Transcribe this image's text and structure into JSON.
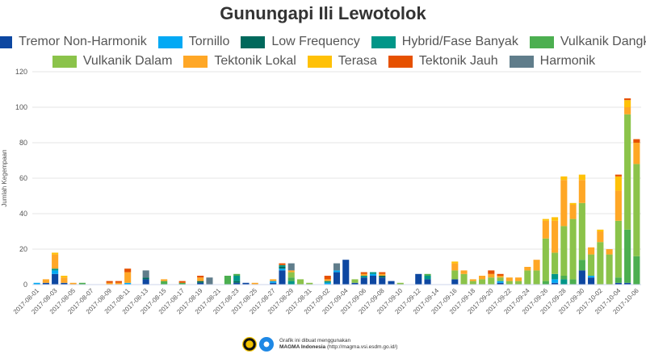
{
  "chart_data": {
    "type": "bar",
    "stacked": true,
    "title": "Gunungapi Ili Lewotolok",
    "ylabel": "Jumlah Kegempaan",
    "xlabel": "",
    "ylim": [
      0,
      120
    ],
    "yticks": [
      0,
      20,
      40,
      60,
      80,
      100,
      120
    ],
    "grid": true,
    "legend_position": "top",
    "categories": [
      "2017-08-01",
      "2017-08-02",
      "2017-08-03",
      "2017-08-04",
      "2017-08-05",
      "2017-08-06",
      "2017-08-07",
      "2017-08-08",
      "2017-08-09",
      "2017-08-10",
      "2017-08-11",
      "2017-08-12",
      "2017-08-13",
      "2017-08-14",
      "2017-08-15",
      "2017-08-16",
      "2017-08-17",
      "2017-08-18",
      "2017-08-19",
      "2017-08-20",
      "2017-08-21",
      "2017-08-22",
      "2017-08-23",
      "2017-08-24",
      "2017-08-25",
      "2017-08-26",
      "2017-08-27",
      "2017-08-28",
      "2017-08-29",
      "2017-08-30",
      "2017-08-31",
      "2017-09-01",
      "2017-09-02",
      "2017-09-03",
      "2017-09-04",
      "2017-09-05",
      "2017-09-06",
      "2017-09-07",
      "2017-09-08",
      "2017-09-09",
      "2017-09-10",
      "2017-09-11",
      "2017-09-12",
      "2017-09-13",
      "2017-09-14",
      "2017-09-15",
      "2017-09-16",
      "2017-09-17",
      "2017-09-18",
      "2017-09-19",
      "2017-09-20",
      "2017-09-21",
      "2017-09-22",
      "2017-09-23",
      "2017-09-24",
      "2017-09-25",
      "2017-09-26",
      "2017-09-27",
      "2017-09-28",
      "2017-09-29",
      "2017-09-30",
      "2017-10-01",
      "2017-10-02",
      "2017-10-03",
      "2017-10-04",
      "2017-10-05",
      "2017-10-06"
    ],
    "xtick_labels": [
      "2017-08-01",
      "2017-08-03",
      "2017-08-05",
      "2017-08-07",
      "2017-08-09",
      "2017-08-11",
      "2017-08-13",
      "2017-08-15",
      "2017-08-17",
      "2017-08-19",
      "2017-08-21",
      "2017-08-23",
      "2017-08-25",
      "2017-08-27",
      "2017-08-29",
      "2017-08-31",
      "2017-09-02",
      "2017-09-04",
      "2017-09-06",
      "2017-09-08",
      "2017-09-10",
      "2017-09-12",
      "2017-09-14",
      "2017-09-16",
      "2017-09-18",
      "2017-09-20",
      "2017-09-22",
      "2017-09-24",
      "2017-09-26",
      "2017-09-28",
      "2017-09-30",
      "2017-10-02",
      "2017-10-04",
      "2017-10-06"
    ],
    "series": [
      {
        "name": "Tremor Non-Harmonik",
        "color": "#0d47a1",
        "values": [
          0,
          1,
          6,
          1,
          0,
          0,
          0,
          0,
          0,
          0,
          0,
          0,
          3,
          0,
          0,
          0,
          0,
          0,
          1,
          0,
          0,
          0,
          1,
          1,
          0,
          0,
          1,
          8,
          0,
          0,
          0,
          0,
          0,
          7,
          14,
          1,
          4,
          5,
          4,
          2,
          0,
          0,
          6,
          3,
          0,
          0,
          3,
          0,
          0,
          0,
          0,
          1,
          0,
          0,
          0,
          0,
          0,
          1,
          0,
          0,
          8,
          4,
          0,
          0,
          1,
          1,
          0
        ]
      },
      {
        "name": "Tornillo",
        "color": "#03a9f4",
        "values": [
          1,
          0,
          2,
          0,
          0,
          0,
          0,
          0,
          0,
          0,
          1,
          0,
          0,
          0,
          0,
          0,
          0,
          0,
          0,
          0,
          0,
          0,
          0,
          0,
          0,
          0,
          1,
          1,
          0,
          0,
          0,
          0,
          1,
          1,
          0,
          0,
          0,
          1,
          0,
          0,
          0,
          0,
          0,
          0,
          0,
          0,
          0,
          0,
          0,
          0,
          0,
          1,
          0,
          0,
          0,
          0,
          0,
          2,
          0,
          0,
          0,
          1,
          0,
          0,
          0,
          0,
          0
        ]
      },
      {
        "name": "Low Frequency",
        "color": "#00695c",
        "values": [
          0,
          0,
          0,
          0,
          0,
          0,
          0,
          0,
          0,
          0,
          0,
          0,
          1,
          0,
          0,
          0,
          0,
          0,
          1,
          0,
          0,
          0,
          1,
          0,
          0,
          0,
          0,
          1,
          0,
          0,
          0,
          0,
          0,
          0,
          0,
          0,
          0,
          0,
          1,
          0,
          0,
          0,
          0,
          0,
          0,
          0,
          0,
          0,
          0,
          0,
          0,
          0,
          0,
          0,
          0,
          0,
          0,
          0,
          0,
          0,
          0,
          0,
          0,
          0,
          0,
          0,
          0
        ]
      },
      {
        "name": "Hybrid/Fase Banyak",
        "color": "#009688",
        "values": [
          0,
          0,
          1,
          0,
          0,
          0,
          0,
          0,
          0,
          0,
          0,
          0,
          0,
          0,
          0,
          0,
          0,
          0,
          0,
          0,
          0,
          0,
          3,
          0,
          0,
          0,
          0,
          1,
          2,
          0,
          0,
          0,
          1,
          0,
          0,
          0,
          1,
          1,
          0,
          0,
          0,
          0,
          0,
          2,
          0,
          0,
          0,
          0,
          0,
          0,
          0,
          0,
          0,
          0,
          0,
          0,
          0,
          3,
          3,
          0,
          0,
          0,
          0,
          0,
          0,
          0,
          0
        ]
      },
      {
        "name": "Vulkanik Dangkal",
        "color": "#4caf50",
        "values": [
          0,
          0,
          0,
          0,
          0,
          1,
          0,
          0,
          0,
          0,
          0,
          0,
          0,
          0,
          2,
          0,
          1,
          0,
          0,
          0,
          0,
          5,
          1,
          0,
          0,
          0,
          0,
          0,
          2,
          0,
          0,
          0,
          0,
          0,
          0,
          0,
          0,
          0,
          0,
          0,
          0,
          0,
          0,
          1,
          0,
          0,
          0,
          0,
          0,
          0,
          0,
          0,
          0,
          0,
          0,
          0,
          2,
          0,
          2,
          3,
          6,
          0,
          0,
          0,
          3,
          30,
          16
        ]
      },
      {
        "name": "Vulkanik Dalam",
        "color": "#8bc34a",
        "values": [
          0,
          0,
          0,
          0,
          0,
          0,
          0,
          0,
          0,
          0,
          0,
          0,
          0,
          0,
          0,
          0,
          0,
          0,
          0,
          0,
          0,
          0,
          0,
          0,
          0,
          0,
          0,
          0,
          3,
          3,
          1,
          0,
          0,
          0,
          0,
          2,
          0,
          0,
          0,
          0,
          1,
          0,
          0,
          0,
          0,
          0,
          5,
          6,
          2,
          3,
          4,
          2,
          2,
          2,
          8,
          8,
          24,
          12,
          28,
          34,
          32,
          12,
          24,
          17,
          32,
          65,
          52
        ]
      },
      {
        "name": "Tektonik Lokal",
        "color": "#ffa726",
        "values": [
          0,
          2,
          8,
          3,
          1,
          0,
          0,
          0,
          1,
          1,
          6,
          0,
          0,
          0,
          1,
          0,
          0,
          0,
          2,
          0,
          0,
          0,
          0,
          0,
          1,
          0,
          1,
          0,
          1,
          0,
          0,
          0,
          1,
          0,
          0,
          0,
          1,
          0,
          1,
          0,
          0,
          0,
          0,
          0,
          0,
          0,
          4,
          2,
          1,
          2,
          2,
          1,
          2,
          2,
          2,
          6,
          10,
          18,
          26,
          8,
          13,
          4,
          6,
          3,
          17,
          4,
          12
        ]
      },
      {
        "name": "Terasa",
        "color": "#ffc107",
        "values": [
          0,
          0,
          1,
          1,
          0,
          0,
          0,
          0,
          0,
          0,
          0,
          0,
          0,
          0,
          0,
          0,
          0,
          0,
          0,
          0,
          0,
          0,
          0,
          0,
          0,
          0,
          0,
          0,
          0,
          0,
          0,
          0,
          0,
          0,
          0,
          0,
          0,
          0,
          0,
          0,
          0,
          0,
          0,
          0,
          0,
          0,
          1,
          0,
          0,
          0,
          0,
          0,
          0,
          0,
          0,
          0,
          1,
          2,
          2,
          1,
          3,
          0,
          1,
          0,
          8,
          4,
          0
        ]
      },
      {
        "name": "Tektonik Jauh",
        "color": "#e65100",
        "values": [
          0,
          0,
          0,
          0,
          0,
          0,
          0,
          0,
          1,
          1,
          2,
          0,
          0,
          0,
          0,
          0,
          1,
          0,
          1,
          0,
          0,
          0,
          0,
          0,
          0,
          0,
          0,
          1,
          0,
          0,
          0,
          0,
          2,
          0,
          0,
          0,
          1,
          0,
          1,
          0,
          0,
          0,
          0,
          0,
          0,
          0,
          0,
          0,
          0,
          0,
          2,
          1,
          0,
          0,
          0,
          0,
          0,
          0,
          0,
          0,
          0,
          0,
          0,
          0,
          1,
          1,
          2
        ]
      },
      {
        "name": "Harmonik",
        "color": "#607d8b",
        "values": [
          0,
          0,
          0,
          0,
          0,
          0,
          0,
          0,
          0,
          0,
          0,
          0,
          4,
          0,
          0,
          0,
          0,
          0,
          0,
          4,
          0,
          0,
          0,
          0,
          0,
          0,
          0,
          0,
          4,
          0,
          0,
          0,
          0,
          4,
          0,
          0,
          0,
          0,
          0,
          0,
          0,
          0,
          0,
          0,
          0,
          0,
          0,
          0,
          0,
          0,
          0,
          0,
          0,
          0,
          0,
          0,
          0,
          0,
          0,
          0,
          0,
          0,
          0,
          0,
          0,
          0,
          0
        ]
      }
    ]
  },
  "footer": {
    "line1": "Grafik ini dibuat menggunakan",
    "line2_bold": "MAGMA Indonesia",
    "line2_rest": " (http://magma.vsi.esdm.go.id/)"
  }
}
